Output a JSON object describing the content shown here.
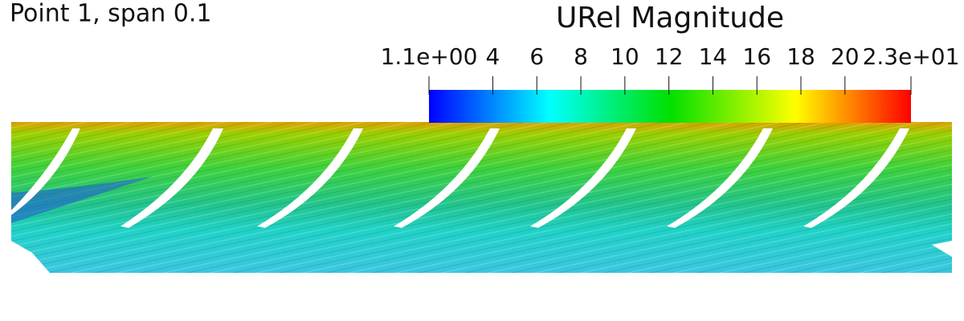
{
  "header": {
    "title": "Point 1, span 0.1"
  },
  "colorbar": {
    "title": "URel Magnitude",
    "range": [
      1.1,
      23
    ],
    "ticks": [
      {
        "value": 1.1,
        "label": "1.1e+00"
      },
      4,
      6,
      8,
      10,
      12,
      14,
      16,
      18,
      20,
      {
        "value": 23,
        "label": "2.3e+01"
      }
    ]
  }
}
